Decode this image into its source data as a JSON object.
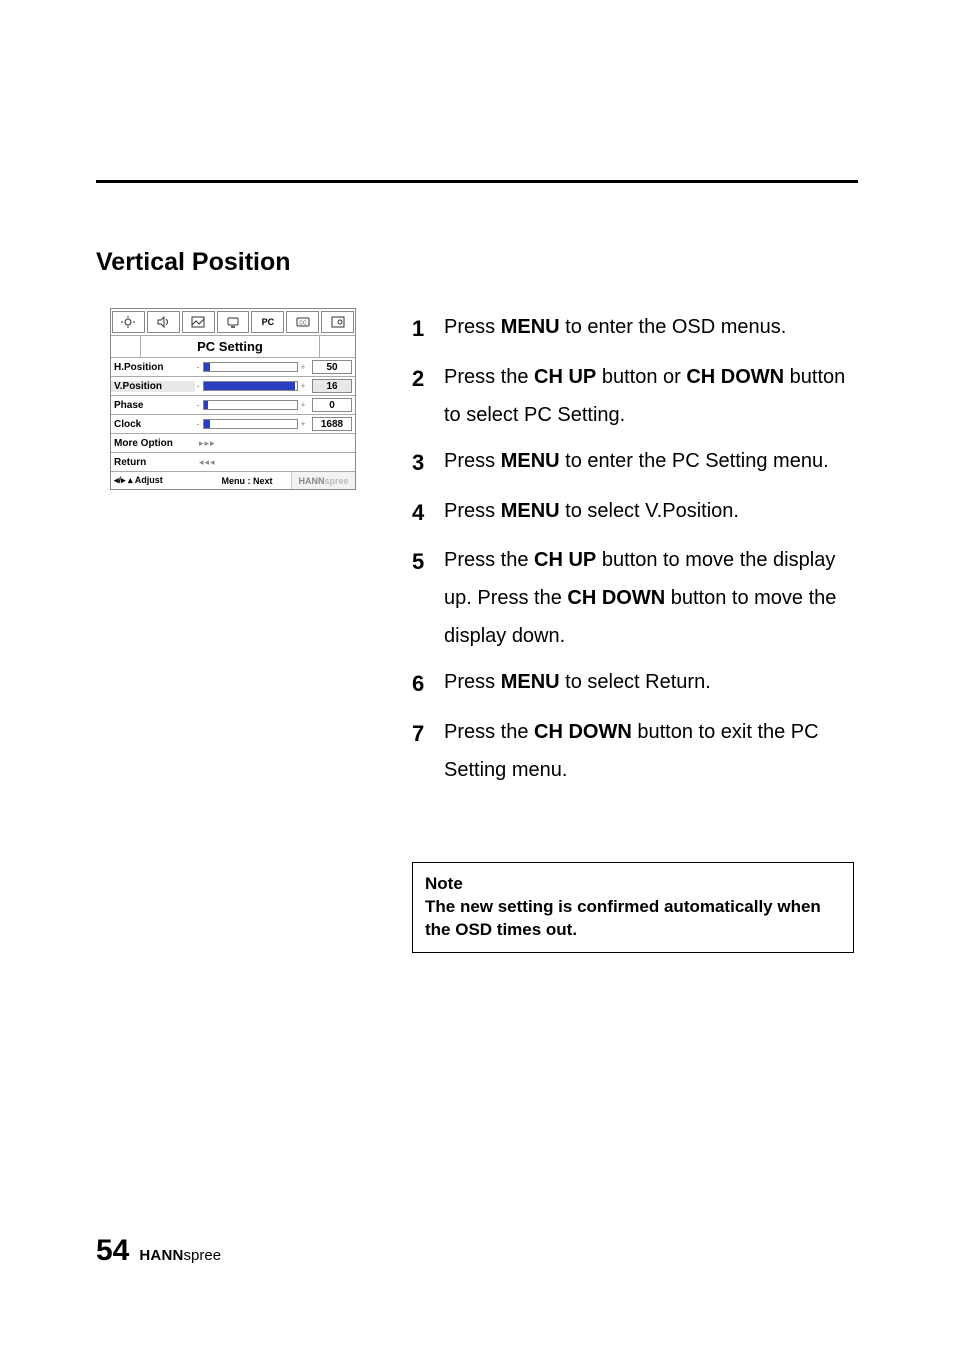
{
  "page": {
    "number": "54",
    "brand_bold": "HANN",
    "brand_light": "spree"
  },
  "section_title": "Vertical Position",
  "osd": {
    "header_pc_label": "PC",
    "title": "PC Setting",
    "rows": [
      {
        "label": "H.Position",
        "type": "slider",
        "value": "50",
        "fill_pct": 6,
        "fill_color": "#2a3fbf",
        "selected": false
      },
      {
        "label": "V.Position",
        "type": "slider",
        "value": "16",
        "fill_pct": 98,
        "fill_color": "#2a3fbf",
        "selected": true
      },
      {
        "label": "Phase",
        "type": "slider",
        "value": "0",
        "fill_pct": 4,
        "fill_color": "#2a3fbf",
        "selected": false
      },
      {
        "label": "Clock",
        "type": "slider",
        "value": "1688",
        "fill_pct": 6,
        "fill_color": "#2a3fbf",
        "selected": false
      },
      {
        "label": "More Option",
        "type": "link",
        "arrows": "▸▸▸"
      },
      {
        "label": "Return",
        "type": "link",
        "arrows": "◂◂◂"
      }
    ],
    "footer": {
      "left": "◂/▸ ▴ Adjust",
      "mid": "Menu : Next",
      "right_bold": "HANN",
      "right_light": "spree"
    },
    "colors": {
      "border": "#888888",
      "slider_border": "#888888",
      "selected_bg": "#e8e8e8",
      "background": "#ffffff"
    }
  },
  "steps": [
    {
      "num": "1",
      "parts": [
        "Press ",
        {
          "b": "MENU"
        },
        " to enter the OSD menus."
      ]
    },
    {
      "num": "2",
      "parts": [
        "Press the ",
        {
          "b": "CH UP"
        },
        " button or ",
        {
          "b": "CH DOWN"
        },
        " button to select PC Setting."
      ]
    },
    {
      "num": "3",
      "parts": [
        "Press ",
        {
          "b": "MENU"
        },
        " to enter the PC Setting menu."
      ]
    },
    {
      "num": "4",
      "parts": [
        "Press ",
        {
          "b": "MENU"
        },
        " to select V.Position."
      ]
    },
    {
      "num": "5",
      "parts": [
        "Press the ",
        {
          "b": "CH UP"
        },
        " button to move the display up. Press the ",
        {
          "b": "CH DOWN"
        },
        " button to move the display down."
      ]
    },
    {
      "num": "6",
      "parts": [
        "Press ",
        {
          "b": "MENU"
        },
        " to select Return."
      ]
    },
    {
      "num": "7",
      "parts": [
        "Press the ",
        {
          "b": "CH DOWN"
        },
        " button to exit the PC Setting menu."
      ]
    }
  ],
  "note": {
    "title": "Note",
    "body": "The new setting is confirmed automatically when the OSD times out."
  }
}
